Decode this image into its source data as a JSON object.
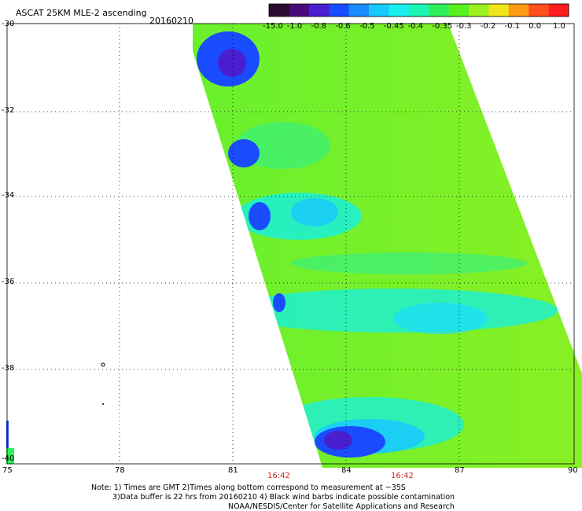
{
  "header": {
    "title": "ASCAT 25KM MLE-2 ascending",
    "date": "20160210"
  },
  "colorbar": {
    "labels": [
      "-15.0",
      "-1.0",
      "-0.8",
      "-0.6",
      "-0.5",
      "-0.45",
      "-0.4",
      "-0.35",
      "-0.3",
      "-0.2",
      "-0.1",
      "0.0",
      "1.0"
    ],
    "colors": [
      "#2a0c2e",
      "#4b0a7a",
      "#4a1fd0",
      "#1a4cff",
      "#1a8cff",
      "#19c8ff",
      "#19f0ee",
      "#1af5b4",
      "#2ef05a",
      "#5af01e",
      "#9cf01e",
      "#f0e619",
      "#ff9a14",
      "#ff501e",
      "#ff1e1e"
    ]
  },
  "axes": {
    "x_ticks": [
      "75",
      "78",
      "81",
      "84",
      "87",
      "90"
    ],
    "y_ticks": [
      "-30",
      "-32",
      "-34",
      "-36",
      "-38",
      "-40"
    ]
  },
  "times": [
    "16:42",
    "16:42"
  ],
  "notes": [
    "Note: 1) Times are GMT 2)Times along bottom correspond to measurement at ~35S",
    "3)Data buffer is 22 hrs from 20160210 4) Black wind barbs indicate possible contamination",
    "NOAA/NESDIS/Center for Satellite Applications and Research"
  ]
}
